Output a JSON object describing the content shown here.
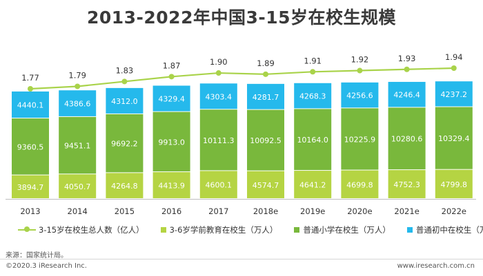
{
  "title": "2013-2022年中国3-15岁在校生规模",
  "colors": {
    "line": "#a9d34a",
    "preschool": "#b5d443",
    "primary": "#79b83c",
    "junior": "#25b9ec"
  },
  "legend": {
    "line_label": "3-15岁在校生总人数（亿人）",
    "preschool_label": "3-6岁学前教育在校生（万人）",
    "primary_label": "普通小学在校生（万人）",
    "junior_label": "普通初中在校生（万人）"
  },
  "source": "来源：国家统计局。",
  "copyright": "©2020.3 iResearch Inc.",
  "website": "www.iresearch.com.cn",
  "chart_data": {
    "type": "bar",
    "stacked": true,
    "categories": [
      "2013",
      "2014",
      "2015",
      "2016",
      "2017",
      "2018e",
      "2019e",
      "2020e",
      "2021e",
      "2022e"
    ],
    "series": [
      {
        "name": "3-6岁学前教育在校生（万人）",
        "values": [
          3894.7,
          4050.7,
          4264.8,
          4413.9,
          4600.1,
          4574.7,
          4641.2,
          4699.8,
          4752.3,
          4799.8
        ]
      },
      {
        "name": "普通小学在校生（万人）",
        "values": [
          9360.5,
          9451.1,
          9692.2,
          9913.0,
          10111.3,
          10092.5,
          10164.0,
          10225.9,
          10280.6,
          10329.4
        ]
      },
      {
        "name": "普通初中在校生（万人）",
        "values": [
          4440.1,
          4386.6,
          4312.0,
          4329.4,
          4303.4,
          4281.7,
          4268.3,
          4256.6,
          4246.4,
          4237.2
        ]
      }
    ],
    "line_series": {
      "name": "3-15岁在校生总人数（亿人）",
      "values": [
        "1.77",
        "1.79",
        "1.83",
        "1.87",
        "1.90",
        "1.89",
        "1.91",
        "1.92",
        "1.93",
        "1.94"
      ]
    }
  }
}
